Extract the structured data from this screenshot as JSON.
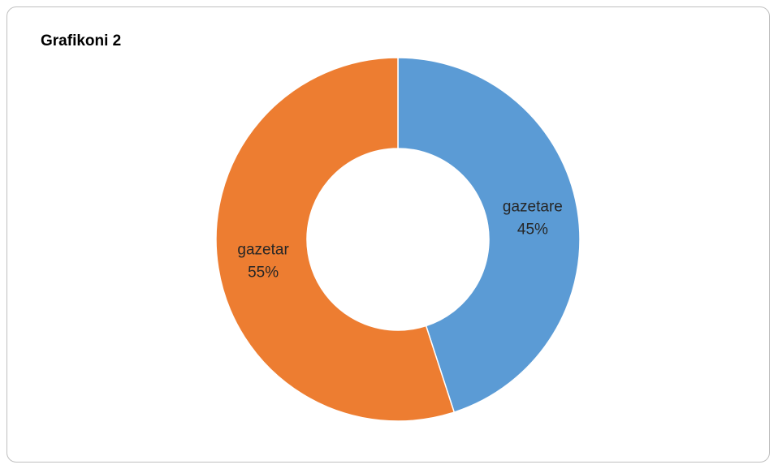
{
  "chart_data": {
    "type": "pie",
    "variant": "doughnut",
    "title": "Grafikoni 2",
    "slices": [
      {
        "label": "gazetare",
        "value": 45,
        "display": "45%",
        "color": "#5B9BD5"
      },
      {
        "label": "gazetar",
        "value": 55,
        "display": "55%",
        "color": "#ED7D31"
      }
    ],
    "legend": "none",
    "start_angle": "12 o'clock",
    "direction": "clockwise"
  }
}
